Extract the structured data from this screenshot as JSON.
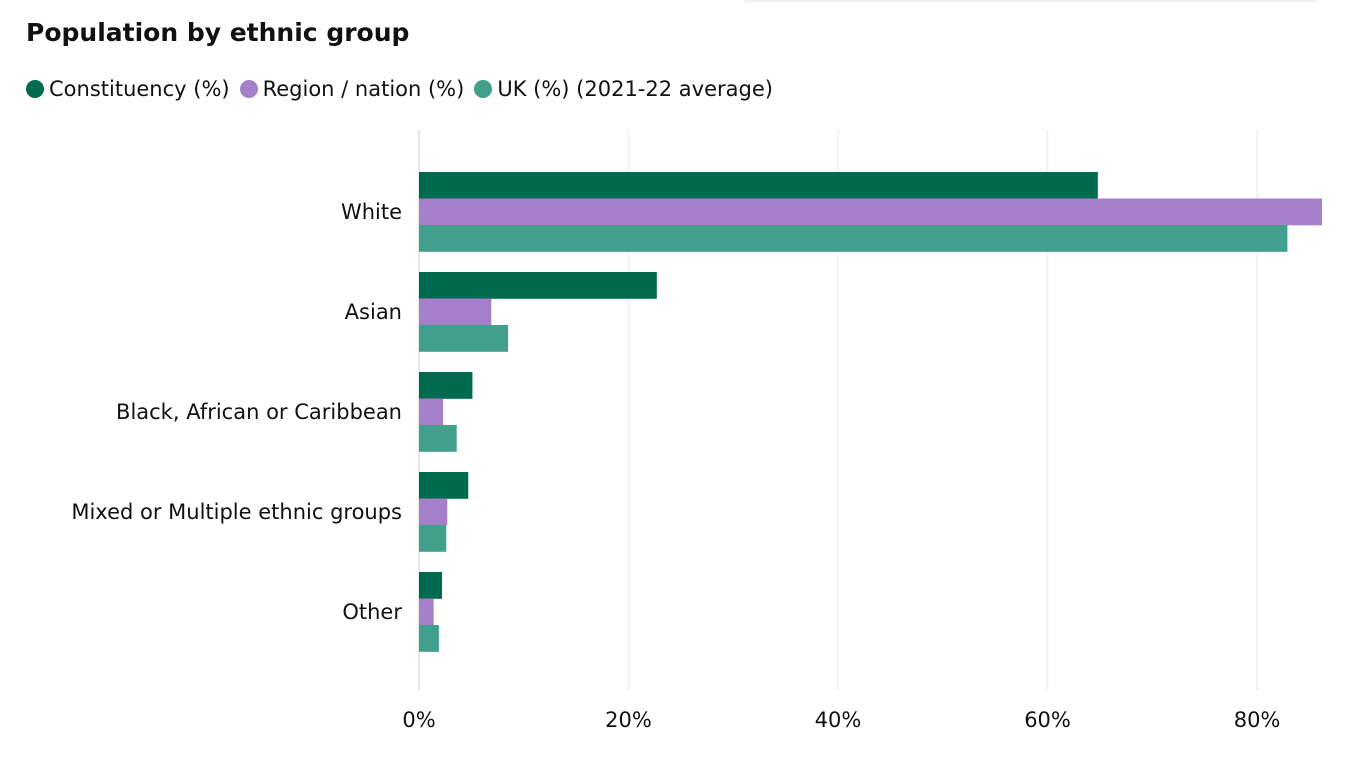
{
  "chart_data": {
    "type": "bar",
    "orientation": "horizontal",
    "title": "Population by ethnic group",
    "categories": [
      "White",
      "Asian",
      "Black, African or Caribbean",
      "Mixed or Multiple ethnic groups",
      "Other"
    ],
    "series": [
      {
        "name": "Constituency (%)",
        "color": "#006a4e",
        "values": [
          64.8,
          22.7,
          5.1,
          4.7,
          2.2
        ]
      },
      {
        "name": "Region / nation (%)",
        "color": "#a67fcb",
        "values": [
          86.2,
          6.9,
          2.3,
          2.7,
          1.4
        ]
      },
      {
        "name": "UK (%) (2021-22 average)",
        "color": "#419f8b",
        "values": [
          82.9,
          8.5,
          3.6,
          2.6,
          1.9
        ]
      }
    ],
    "xlim": [
      0,
      86.2
    ],
    "xticks": [
      0,
      20,
      40,
      60,
      80
    ],
    "xtick_labels": [
      "0%",
      "20%",
      "40%",
      "60%",
      "80%"
    ],
    "xlabel": "",
    "ylabel": "",
    "grid": true,
    "legend_position": "top-left"
  }
}
